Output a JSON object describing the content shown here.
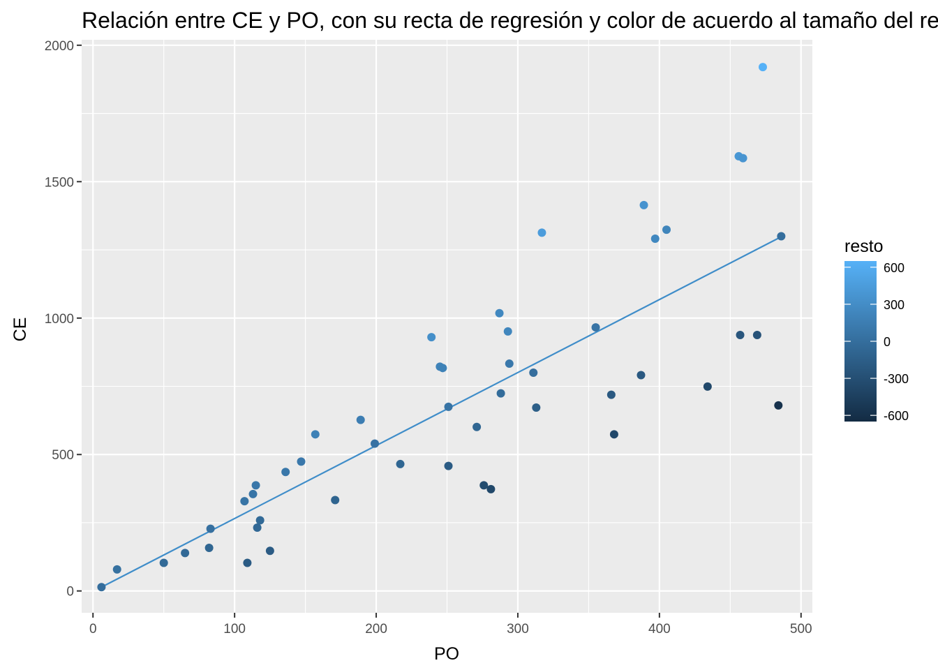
{
  "chart_data": {
    "type": "scatter",
    "title": "Relación entre CE y PO, con su recta de regresión y color de acuerdo al tamaño del residuo",
    "xlabel": "PO",
    "ylabel": "CE",
    "xlim": [
      -8,
      508
    ],
    "ylim": [
      -80,
      2020
    ],
    "x_ticks": [
      0,
      100,
      200,
      300,
      400,
      500
    ],
    "x_tick_labels": [
      "0",
      "100",
      "200",
      "300",
      "400",
      "500"
    ],
    "y_ticks": [
      0,
      500,
      1000,
      1500,
      2000
    ],
    "y_tick_labels": [
      "0",
      "500",
      "1000",
      "1500",
      "2000"
    ],
    "grid": true,
    "legend": {
      "title": "resto",
      "placement": "right",
      "min": -650,
      "max": 650,
      "ticks": [
        600,
        300,
        0,
        -300,
        -600
      ],
      "tick_labels": [
        "600",
        "300",
        "0",
        "-300",
        "-600"
      ],
      "color_low": "#132B43",
      "color_high": "#56B1F7"
    },
    "regression_line": {
      "x": [
        6,
        486
      ],
      "y": [
        14,
        1298
      ],
      "color": "#3f8dc9"
    },
    "points": [
      {
        "x": 6,
        "y": 14,
        "resto": -10
      },
      {
        "x": 17,
        "y": 79,
        "resto": 25
      },
      {
        "x": 50,
        "y": 103,
        "resto": -40
      },
      {
        "x": 65,
        "y": 139,
        "resto": -50
      },
      {
        "x": 82,
        "y": 158,
        "resto": -80
      },
      {
        "x": 83,
        "y": 228,
        "resto": 20
      },
      {
        "x": 107,
        "y": 329,
        "resto": 60
      },
      {
        "x": 109,
        "y": 103,
        "resto": -180
      },
      {
        "x": 113,
        "y": 355,
        "resto": 70
      },
      {
        "x": 115,
        "y": 387,
        "resto": 90
      },
      {
        "x": 116,
        "y": 232,
        "resto": -60
      },
      {
        "x": 118,
        "y": 259,
        "resto": -40
      },
      {
        "x": 125,
        "y": 147,
        "resto": -180
      },
      {
        "x": 136,
        "y": 436,
        "resto": 90
      },
      {
        "x": 147,
        "y": 474,
        "resto": 100
      },
      {
        "x": 157,
        "y": 574,
        "resto": 180
      },
      {
        "x": 171,
        "y": 333,
        "resto": -100
      },
      {
        "x": 189,
        "y": 627,
        "resto": 150
      },
      {
        "x": 199,
        "y": 540,
        "resto": 40
      },
      {
        "x": 217,
        "y": 465,
        "resto": -80
      },
      {
        "x": 239,
        "y": 930,
        "resto": 320
      },
      {
        "x": 245,
        "y": 822,
        "resto": 200
      },
      {
        "x": 247,
        "y": 817,
        "resto": 190
      },
      {
        "x": 251,
        "y": 675,
        "resto": 50
      },
      {
        "x": 251,
        "y": 458,
        "resto": -180
      },
      {
        "x": 271,
        "y": 601,
        "resto": -80
      },
      {
        "x": 276,
        "y": 387,
        "resto": -330
      },
      {
        "x": 281,
        "y": 373,
        "resto": -370
      },
      {
        "x": 287,
        "y": 1018,
        "resto": 250
      },
      {
        "x": 288,
        "y": 724,
        "resto": -20
      },
      {
        "x": 293,
        "y": 951,
        "resto": 230
      },
      {
        "x": 294,
        "y": 833,
        "resto": 100
      },
      {
        "x": 311,
        "y": 800,
        "resto": 0
      },
      {
        "x": 313,
        "y": 672,
        "resto": -150
      },
      {
        "x": 317,
        "y": 1313,
        "resto": 450
      },
      {
        "x": 355,
        "y": 966,
        "resto": 60
      },
      {
        "x": 366,
        "y": 719,
        "resto": -200
      },
      {
        "x": 368,
        "y": 574,
        "resto": -370
      },
      {
        "x": 387,
        "y": 791,
        "resto": -200
      },
      {
        "x": 389,
        "y": 1414,
        "resto": 360
      },
      {
        "x": 397,
        "y": 1291,
        "resto": 250
      },
      {
        "x": 405,
        "y": 1324,
        "resto": 220
      },
      {
        "x": 434,
        "y": 749,
        "resto": -370
      },
      {
        "x": 456,
        "y": 1593,
        "resto": 400
      },
      {
        "x": 457,
        "y": 938,
        "resto": -230
      },
      {
        "x": 459,
        "y": 1586,
        "resto": 370
      },
      {
        "x": 469,
        "y": 938,
        "resto": -270
      },
      {
        "x": 473,
        "y": 1920,
        "resto": 650
      },
      {
        "x": 484,
        "y": 680,
        "resto": -580
      },
      {
        "x": 486,
        "y": 1300,
        "resto": 0
      }
    ]
  }
}
